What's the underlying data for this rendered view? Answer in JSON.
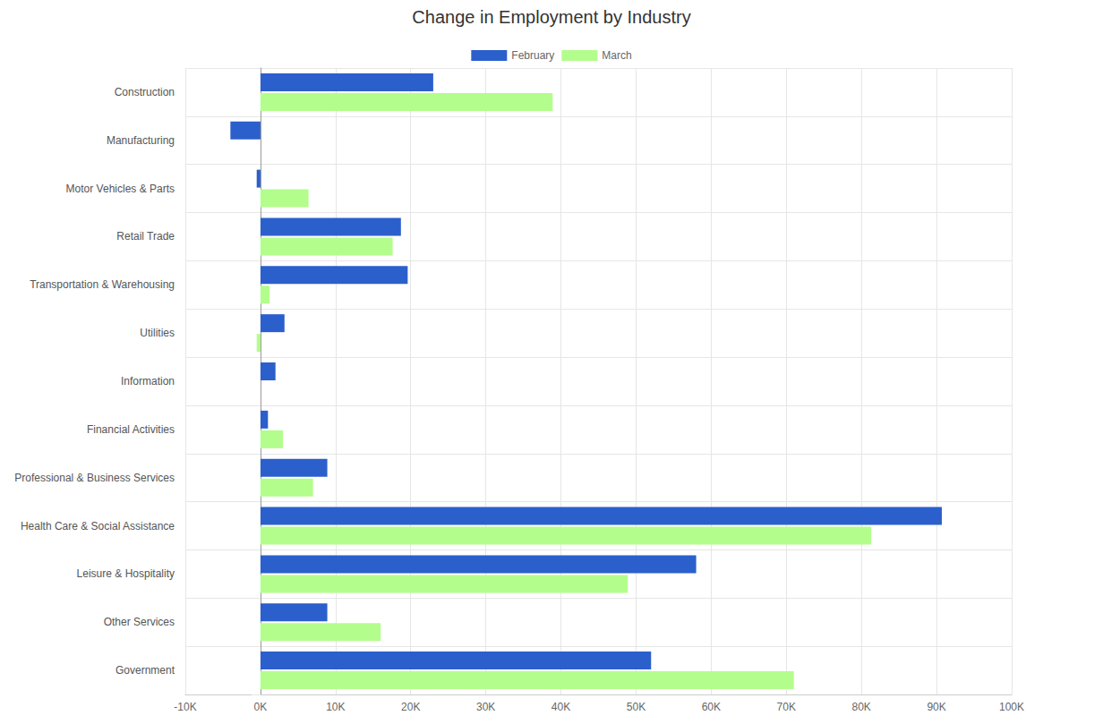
{
  "chart_data": {
    "type": "bar",
    "title": "Change in Employment by Industry",
    "orientation": "horizontal",
    "legend": "top",
    "grid": true,
    "categories": [
      "Construction",
      "Manufacturing",
      "Motor Vehicles & Parts",
      "Retail Trade",
      "Transportation & Warehousing",
      "Utilities",
      "Information",
      "Financial Activities",
      "Professional & Business Services",
      "Health Care & Social Assistance",
      "Leisure & Hospitality",
      "Other Services",
      "Government"
    ],
    "series": [
      {
        "name": "February",
        "color": "#2b5fcc",
        "values": [
          23000,
          -4000,
          -500,
          18700,
          19600,
          3200,
          2000,
          1000,
          8900,
          90700,
          58000,
          8900,
          52000
        ]
      },
      {
        "name": "March",
        "color": "#b3fd8c",
        "values": [
          38900,
          0,
          6400,
          17600,
          1200,
          -500,
          0,
          3000,
          7000,
          81300,
          48900,
          16000,
          71000
        ]
      }
    ],
    "xlim": [
      -10000,
      100000
    ],
    "xticks": [
      {
        "value": -10000,
        "label": "-10K"
      },
      {
        "value": 0,
        "label": "0K"
      },
      {
        "value": 10000,
        "label": "10K"
      },
      {
        "value": 20000,
        "label": "20K"
      },
      {
        "value": 30000,
        "label": "30K"
      },
      {
        "value": 40000,
        "label": "40K"
      },
      {
        "value": 50000,
        "label": "50K"
      },
      {
        "value": 60000,
        "label": "60K"
      },
      {
        "value": 70000,
        "label": "70K"
      },
      {
        "value": 80000,
        "label": "80K"
      },
      {
        "value": 90000,
        "label": "90K"
      },
      {
        "value": 100000,
        "label": "100K"
      }
    ]
  }
}
